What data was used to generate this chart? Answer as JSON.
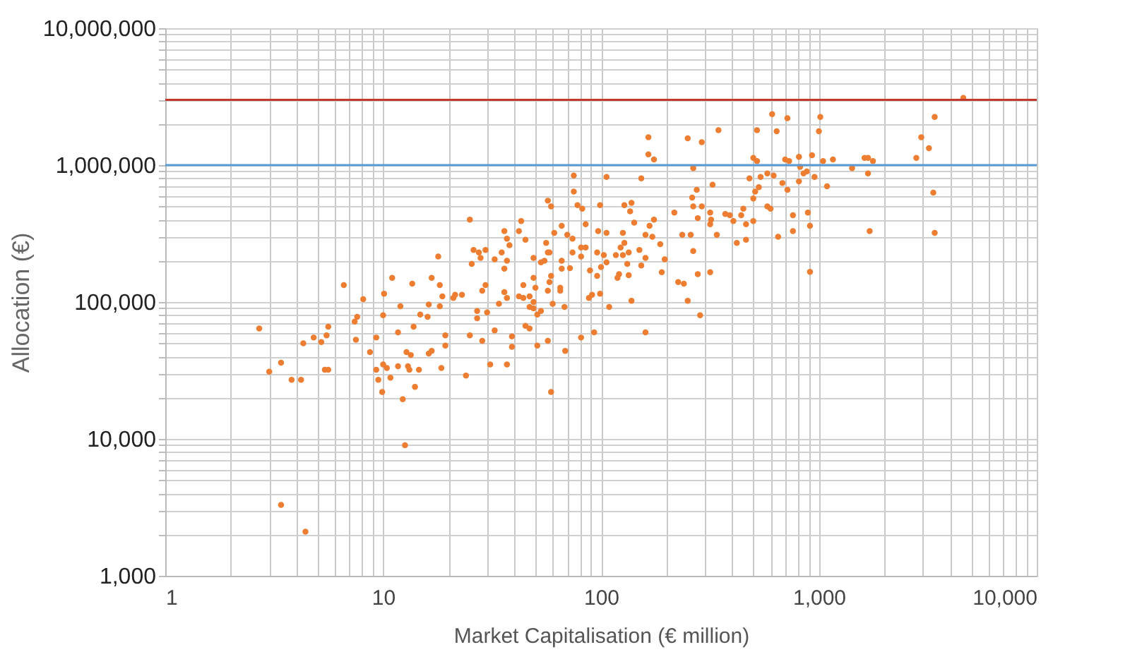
{
  "chart_data": {
    "type": "scatter",
    "xlabel": "Market Capitalisation (€ million)",
    "ylabel": "Allocation (€)",
    "log": "xy",
    "grid": true,
    "marker": "circle",
    "xlim": [
      1,
      10000
    ],
    "ylim": [
      1000,
      10000000
    ],
    "xticks": [
      {
        "value": 1,
        "label": "1"
      },
      {
        "value": 2,
        "label": null
      },
      {
        "value": 3,
        "label": null
      },
      {
        "value": 4,
        "label": null
      },
      {
        "value": 5,
        "label": null
      },
      {
        "value": 6,
        "label": null
      },
      {
        "value": 7,
        "label": null
      },
      {
        "value": 8,
        "label": null
      },
      {
        "value": 9,
        "label": null
      },
      {
        "value": 10,
        "label": "10"
      },
      {
        "value": 20,
        "label": null
      },
      {
        "value": 30,
        "label": null
      },
      {
        "value": 40,
        "label": null
      },
      {
        "value": 50,
        "label": null
      },
      {
        "value": 60,
        "label": null
      },
      {
        "value": 70,
        "label": null
      },
      {
        "value": 80,
        "label": null
      },
      {
        "value": 90,
        "label": null
      },
      {
        "value": 100,
        "label": "100"
      },
      {
        "value": 200,
        "label": null
      },
      {
        "value": 300,
        "label": null
      },
      {
        "value": 400,
        "label": null
      },
      {
        "value": 500,
        "label": null
      },
      {
        "value": 600,
        "label": null
      },
      {
        "value": 700,
        "label": null
      },
      {
        "value": 800,
        "label": null
      },
      {
        "value": 900,
        "label": null
      },
      {
        "value": 1000,
        "label": "1,000"
      },
      {
        "value": 2000,
        "label": null
      },
      {
        "value": 3000,
        "label": null
      },
      {
        "value": 4000,
        "label": null
      },
      {
        "value": 5000,
        "label": null
      },
      {
        "value": 6000,
        "label": null
      },
      {
        "value": 7000,
        "label": null
      },
      {
        "value": 8000,
        "label": null
      },
      {
        "value": 9000,
        "label": null
      },
      {
        "value": 10000,
        "label": "10,000"
      }
    ],
    "yticks": [
      {
        "value": 1000,
        "label": "1,000"
      },
      {
        "value": 2000,
        "label": null
      },
      {
        "value": 3000,
        "label": null
      },
      {
        "value": 4000,
        "label": null
      },
      {
        "value": 5000,
        "label": null
      },
      {
        "value": 6000,
        "label": null
      },
      {
        "value": 7000,
        "label": null
      },
      {
        "value": 8000,
        "label": null
      },
      {
        "value": 9000,
        "label": null
      },
      {
        "value": 10000,
        "label": "10,000"
      },
      {
        "value": 20000,
        "label": null
      },
      {
        "value": 30000,
        "label": null
      },
      {
        "value": 40000,
        "label": null
      },
      {
        "value": 50000,
        "label": null
      },
      {
        "value": 60000,
        "label": null
      },
      {
        "value": 70000,
        "label": null
      },
      {
        "value": 80000,
        "label": null
      },
      {
        "value": 90000,
        "label": null
      },
      {
        "value": 100000,
        "label": "100,000"
      },
      {
        "value": 200000,
        "label": null
      },
      {
        "value": 300000,
        "label": null
      },
      {
        "value": 400000,
        "label": null
      },
      {
        "value": 500000,
        "label": null
      },
      {
        "value": 600000,
        "label": null
      },
      {
        "value": 700000,
        "label": null
      },
      {
        "value": 800000,
        "label": null
      },
      {
        "value": 900000,
        "label": null
      },
      {
        "value": 1000000,
        "label": "1,000,000"
      },
      {
        "value": 2000000,
        "label": null
      },
      {
        "value": 3000000,
        "label": null
      },
      {
        "value": 4000000,
        "label": null
      },
      {
        "value": 5000000,
        "label": null
      },
      {
        "value": 6000000,
        "label": null
      },
      {
        "value": 7000000,
        "label": null
      },
      {
        "value": 8000000,
        "label": null
      },
      {
        "value": 9000000,
        "label": null
      },
      {
        "value": 10000000,
        "label": "10,000,000"
      }
    ],
    "ref_lines": [
      {
        "axis": "y",
        "value": 3000000,
        "color": "#c0392b"
      },
      {
        "axis": "y",
        "value": 1000000,
        "color": "#5b9bd5"
      }
    ],
    "series": [
      {
        "color": "#ed7d31",
        "x": [
          2.7,
          3.0,
          3.4,
          3.8,
          4.2,
          4.3,
          4.8,
          5.2,
          5.5,
          5.6,
          5.4,
          5.6,
          3.4,
          4.4,
          6.6,
          8.1,
          7.6,
          7.4,
          7.5,
          8.7,
          9.3,
          9.3,
          9.5,
          10,
          10,
          9.9,
          10.1,
          10.4,
          10.8,
          11,
          11.7,
          11.7,
          12,
          12.3,
          12.6,
          12.8,
          13.4,
          13,
          13.2,
          13.6,
          13.8,
          14,
          14.6,
          14.8,
          16,
          16.2,
          16.2,
          16.7,
          16.7,
          17.9,
          18.2,
          18.2,
          18.7,
          19.3,
          19.3,
          18.5,
          21,
          21.4,
          23,
          165,
          165,
          175,
          250,
          290,
          265,
          75,
          106,
          153,
          75,
          57,
          59,
          78,
          82,
          99,
          128,
          138,
          136,
          275,
          262,
          265,
          217,
          278,
          25,
          43,
          85,
          142,
          36,
          42,
          61,
          66,
          97,
          106,
          126,
          167,
          175,
          258,
          236,
          37,
          45,
          38,
          56,
          70,
          74,
          85,
          81,
          128,
          123,
          160,
          172,
          187,
          26,
          27.5,
          28,
          29.5,
          25.5,
          35,
          32.5,
          37,
          57,
          58,
          49,
          53,
          55,
          66,
          74,
          81,
          96,
          103,
          117,
          126,
          134,
          150,
          160,
          196,
          106,
          100,
          132,
          153,
          72,
          66,
          36,
          89,
          96,
          121,
          119,
          134,
          190,
          49,
          59,
          58,
          65,
          65,
          57,
          50,
          29.5,
          28.5,
          36,
          42,
          44,
          47,
          44,
          37,
          34,
          99,
          91,
          88,
          138,
          226,
          240,
          250,
          278,
          27,
          27,
          30,
          49,
          49,
          47,
          53,
          51,
          60,
          68,
          109,
          285,
          25,
          32.5,
          39,
          45,
          47,
          57,
          51,
          39,
          28.5,
          93,
          160,
          81,
          68.5,
          31,
          37,
          24,
          59,
          346,
          610,
          717,
          1015,
          4600,
          3400,
          520,
          640,
          1000,
          2950,
          3200,
          500,
          520,
          700,
          730,
          810,
          930,
          1045,
          1160,
          1620,
          1680,
          1770,
          2800,
          1420,
          820,
          880,
          850,
          480,
          540,
          580,
          620,
          955,
          1680,
          680,
          810,
          325,
          1090,
          530,
          510,
          717,
          500,
          3350,
          290,
          580,
          600,
          317,
          372,
          390,
          405,
          440,
          450,
          890,
          760,
          320,
          317,
          463,
          500,
          910,
          760,
          1710,
          3400,
          340,
          463,
          420,
          650,
          265,
          317,
          910
        ],
        "values": [
          64000,
          31000,
          36000,
          27000,
          27000,
          50000,
          55000,
          51000,
          57000,
          66000,
          32000,
          32000,
          3300,
          2100,
          133000,
          105000,
          78000,
          72000,
          53000,
          43000,
          55000,
          32000,
          27000,
          80000,
          35000,
          22000,
          115000,
          33000,
          28000,
          150000,
          34000,
          60000,
          93000,
          19500,
          9000,
          43000,
          41000,
          34000,
          32000,
          136000,
          66000,
          24000,
          32000,
          81000,
          78000,
          96000,
          42000,
          44000,
          150000,
          215000,
          133000,
          93000,
          110000,
          57000,
          48000,
          33000,
          107000,
          113000,
          113000,
          1600000,
          1200000,
          1100000,
          1570000,
          1470000,
          950000,
          840000,
          820000,
          800000,
          640000,
          550000,
          500000,
          510000,
          480000,
          510000,
          510000,
          530000,
          460000,
          660000,
          580000,
          500000,
          450000,
          410000,
          400000,
          390000,
          370000,
          380000,
          330000,
          330000,
          320000,
          360000,
          330000,
          320000,
          320000,
          360000,
          400000,
          310000,
          310000,
          290000,
          285000,
          260000,
          270000,
          310000,
          290000,
          250000,
          250000,
          270000,
          250000,
          310000,
          300000,
          265000,
          240000,
          230000,
          210000,
          240000,
          190000,
          230000,
          205000,
          200000,
          230000,
          230000,
          210000,
          195000,
          200000,
          200000,
          230000,
          215000,
          230000,
          220000,
          220000,
          220000,
          230000,
          240000,
          210000,
          205000,
          195000,
          180000,
          190000,
          185000,
          177000,
          175000,
          175000,
          170000,
          155000,
          160000,
          150000,
          157000,
          165000,
          150000,
          155000,
          140000,
          127000,
          121000,
          121000,
          127000,
          133000,
          121000,
          118000,
          110000,
          133000,
          110000,
          107000,
          107000,
          97000,
          115000,
          113000,
          107000,
          102000,
          140000,
          136000,
          102000,
          160000,
          86000,
          76000,
          84000,
          100000,
          90000,
          92000,
          86000,
          81000,
          97000,
          92000,
          92000,
          80000,
          57000,
          62000,
          56000,
          67000,
          64000,
          52000,
          48000,
          47000,
          52000,
          60000,
          60000,
          55000,
          44000,
          35000,
          35000,
          29000,
          22000,
          1800000,
          2360000,
          2200000,
          2250000,
          3100000,
          2250000,
          1800000,
          1770000,
          1770000,
          1600000,
          1330000,
          1130000,
          1070000,
          1100000,
          1070000,
          1150000,
          1180000,
          1070000,
          1100000,
          1130000,
          1130000,
          1070000,
          1130000,
          950000,
          970000,
          900000,
          870000,
          800000,
          820000,
          870000,
          840000,
          820000,
          870000,
          740000,
          760000,
          720000,
          700000,
          690000,
          640000,
          660000,
          570000,
          630000,
          500000,
          500000,
          480000,
          450000,
          440000,
          430000,
          390000,
          430000,
          480000,
          450000,
          430000,
          400000,
          370000,
          370000,
          390000,
          360000,
          330000,
          330000,
          320000,
          310000,
          285000,
          270000,
          300000,
          236000,
          165000,
          166000
        ]
      }
    ]
  }
}
